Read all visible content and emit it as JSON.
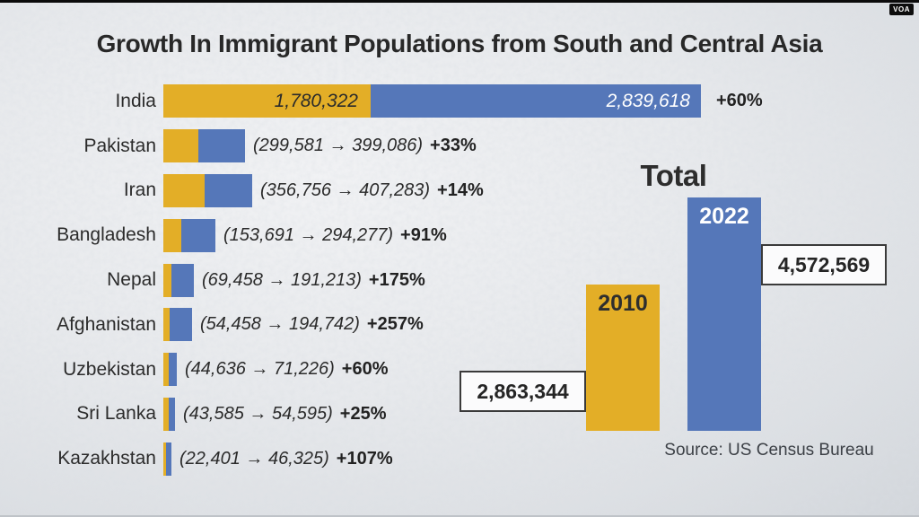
{
  "watermark": {
    "label": "VOA"
  },
  "title": "Growth In Immigrant Populations from South and Central Asia",
  "source": "Source: US Census Bureau",
  "colors": {
    "color_2010": "#e3ae27",
    "color_2022": "#5577b9",
    "text_dark": "#2b2b2b",
    "box_border": "#3a3a3a",
    "box_bg": "#fbfbfc"
  },
  "rows": [
    {
      "country": "India",
      "label_2010": "1,780,322",
      "label_2022": "2,839,618",
      "range": "",
      "growth": "+60%"
    },
    {
      "country": "Pakistan",
      "range": "(299,581 → 399,086)",
      "growth": "+33%"
    },
    {
      "country": "Iran",
      "range": "(356,756 → 407,283)",
      "growth": "+14%"
    },
    {
      "country": "Bangladesh",
      "range": "(153,691 → 294,277)",
      "growth": "+91%"
    },
    {
      "country": "Nepal",
      "range": "(69,458 → 191,213)",
      "growth": "+175%"
    },
    {
      "country": "Afghanistan",
      "range": "(54,458 → 194,742)",
      "growth": "+257%"
    },
    {
      "country": "Uzbekistan",
      "range": "(44,636 → 71,226)",
      "growth": "+60%"
    },
    {
      "country": "Sri Lanka",
      "range": "(43,585 → 54,595)",
      "growth": "+25%"
    },
    {
      "country": "Kazakhstan",
      "range": "(22,401 → 46,325)",
      "growth": "+107%"
    }
  ],
  "total": {
    "heading": "Total",
    "label_2010": "2010",
    "label_2022": "2022",
    "value_2010": "2,863,344",
    "value_2022": "4,572,569"
  },
  "chart_data": [
    {
      "type": "bar",
      "orientation": "horizontal",
      "title": "Growth In Immigrant Populations from South and Central Asia",
      "categories": [
        "India",
        "Pakistan",
        "Iran",
        "Bangladesh",
        "Nepal",
        "Afghanistan",
        "Uzbekistan",
        "Sri Lanka",
        "Kazakhstan"
      ],
      "series": [
        {
          "name": "2010",
          "color": "#e3ae27",
          "values": [
            1780322,
            299581,
            356756,
            153691,
            69458,
            54458,
            44636,
            43585,
            22401
          ]
        },
        {
          "name": "2022",
          "color": "#5577b9",
          "values": [
            2839618,
            399086,
            407283,
            294277,
            191213,
            194742,
            71226,
            54595,
            46325
          ]
        }
      ],
      "growth_percent": [
        60,
        33,
        14,
        91,
        175,
        257,
        60,
        25,
        107
      ],
      "xlim": [
        0,
        2839618
      ],
      "grid": false,
      "legend": "none"
    },
    {
      "type": "bar",
      "orientation": "vertical",
      "title": "Total",
      "categories": [
        "2010",
        "2022"
      ],
      "values": [
        2863344,
        4572569
      ],
      "colors": [
        "#e3ae27",
        "#5577b9"
      ],
      "annotations": [
        "2,863,344",
        "4,572,569"
      ],
      "ylim": [
        0,
        4572569
      ],
      "grid": false,
      "source": "Source: US Census Bureau"
    }
  ]
}
